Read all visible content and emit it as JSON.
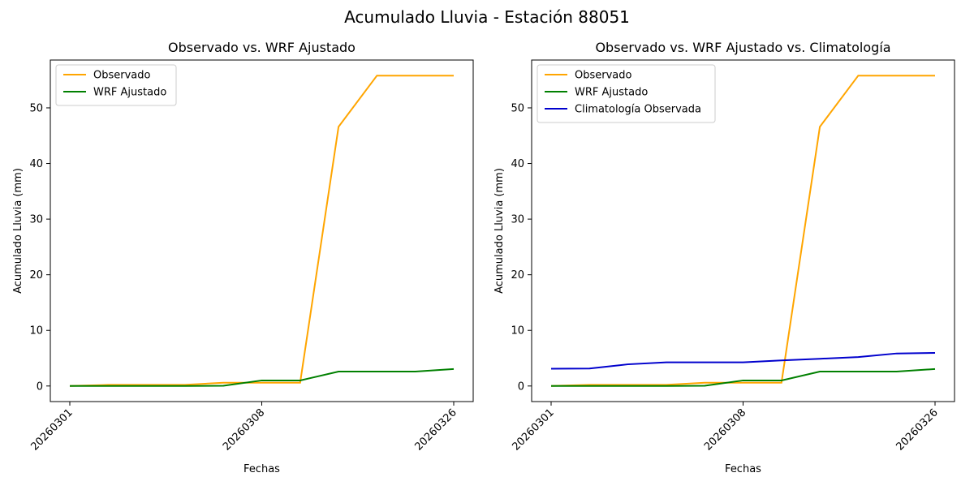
{
  "suptitle": "Acumulado Lluvia - Estación 88051",
  "chart_data": [
    {
      "type": "line",
      "title": "Observado vs. WRF Ajustado",
      "xlabel": "Fechas",
      "ylabel": "Acumulado Lluvia (mm)",
      "x_tick_labels": [
        "20260301",
        "20260308",
        "20260326"
      ],
      "y_ticks": [
        0,
        10,
        20,
        30,
        40,
        50
      ],
      "ylim": [
        -2.8,
        58.6
      ],
      "legend": "top-left",
      "grid": false,
      "series": [
        {
          "name": "Observado",
          "color": "#ffa500",
          "values": [
            0,
            0.2,
            0.2,
            0.2,
            0.6,
            0.6,
            0.6,
            46.6,
            55.8,
            55.8,
            55.8
          ]
        },
        {
          "name": "WRF Ajustado",
          "color": "#008000",
          "values": [
            0,
            0,
            0,
            0,
            0.05,
            1.0,
            1.0,
            2.6,
            2.6,
            2.6,
            3.05
          ]
        }
      ]
    },
    {
      "type": "line",
      "title": "Observado vs. WRF Ajustado vs. Climatología",
      "xlabel": "Fechas",
      "ylabel": "Acumulado Lluvia (mm)",
      "x_tick_labels": [
        "20260301",
        "20260308",
        "20260326"
      ],
      "y_ticks": [
        0,
        10,
        20,
        30,
        40,
        50
      ],
      "ylim": [
        -2.8,
        58.6
      ],
      "legend": "top-left",
      "grid": false,
      "series": [
        {
          "name": "Observado",
          "color": "#ffa500",
          "values": [
            0,
            0.2,
            0.2,
            0.2,
            0.6,
            0.6,
            0.6,
            46.6,
            55.8,
            55.8,
            55.8
          ]
        },
        {
          "name": "WRF Ajustado",
          "color": "#008000",
          "values": [
            0,
            0,
            0,
            0,
            0.05,
            1.0,
            1.0,
            2.6,
            2.6,
            2.6,
            3.05
          ]
        },
        {
          "name": "Climatología Observada",
          "color": "#0000cd",
          "values": [
            3.1,
            3.15,
            3.9,
            4.25,
            4.25,
            4.25,
            4.6,
            4.9,
            5.2,
            5.85,
            5.95
          ]
        }
      ]
    }
  ]
}
